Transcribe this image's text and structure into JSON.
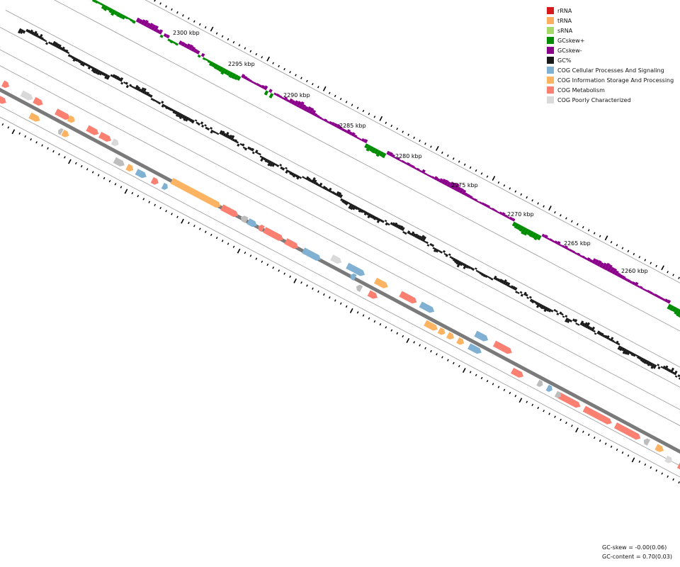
{
  "legend": {
    "items": [
      {
        "label": "rRNA",
        "color": "#d7191c",
        "icon": "rrna-swatch"
      },
      {
        "label": "tRNA",
        "color": "#fdae61",
        "icon": "trna-swatch"
      },
      {
        "label": "sRNA",
        "color": "#a6d96a",
        "icon": "srna-swatch"
      },
      {
        "label": "GCskew+",
        "color": "#008c00",
        "icon": "gcskew-plus-swatch"
      },
      {
        "label": "GCskew-",
        "color": "#8b008b",
        "icon": "gcskew-minus-swatch"
      },
      {
        "label": "GC%",
        "color": "#1a1a1a",
        "icon": "gc-content-swatch"
      },
      {
        "label": "COG Cellular Processes And Signaling",
        "color": "#80b1d3",
        "icon": "cog-cellular-swatch"
      },
      {
        "label": "COG Information Storage And Processing",
        "color": "#fdb462",
        "icon": "cog-information-swatch"
      },
      {
        "label": "COG Metabolism",
        "color": "#fb8072",
        "icon": "cog-metabolism-swatch"
      },
      {
        "label": "COG Poorly Characterized",
        "color": "#d9d9d9",
        "icon": "cog-poorly-swatch"
      }
    ]
  },
  "scale": {
    "labels": [
      "2300 kbp",
      "2295 kbp",
      "2290 kbp",
      "2285 kbp",
      "2280 kbp",
      "2275 kbp",
      "2270 kbp",
      "2265 kbp",
      "2260 kbp"
    ]
  },
  "stats": {
    "gc_skew": "GC-skew = -0.00(0.06)",
    "gc_content": "GC-content = 0.70(0.03)"
  },
  "colors": {
    "gc_skew_plus": "#008c00",
    "gc_skew_minus": "#8b008b",
    "gc_content": "#1a1a1a",
    "backbone": "#7a7a7a",
    "cellular": "#80b1d3",
    "information": "#fdb462",
    "metabolism": "#fb8072",
    "poorly": "#d9d9d9",
    "poorly_dark": "#bdbdbd",
    "trna": "#fdae61"
  }
}
